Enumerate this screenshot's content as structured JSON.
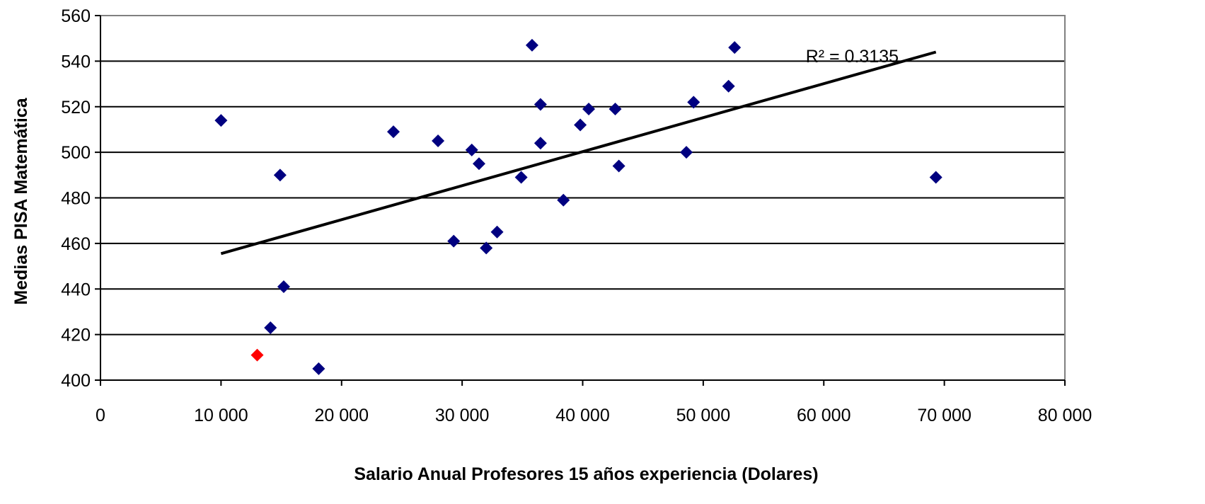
{
  "chart_data": {
    "type": "scatter",
    "title": "",
    "xlabel": "Salario Anual  Profesores 15 años experiencia (Dolares)",
    "ylabel": "Medias PISA Matemática",
    "xlim": [
      0,
      80000
    ],
    "ylim": [
      400,
      560
    ],
    "x_ticks": [
      0,
      10000,
      20000,
      30000,
      40000,
      50000,
      60000,
      70000,
      80000
    ],
    "x_tick_labels": [
      "0",
      "10 000",
      "20 000",
      "30 000",
      "40 000",
      "50 000",
      "60 000",
      "70 000",
      "80 000"
    ],
    "y_ticks": [
      400,
      420,
      440,
      460,
      480,
      500,
      520,
      540,
      560
    ],
    "y_tick_labels": [
      "400",
      "420",
      "440",
      "460",
      "480",
      "500",
      "520",
      "540",
      "560"
    ],
    "grid": "horizontal",
    "legend": "none",
    "series": [
      {
        "color": "#000080",
        "marker": "diamond",
        "points": [
          {
            "x": 10000,
            "y": 514
          },
          {
            "x": 14900,
            "y": 490
          },
          {
            "x": 15200,
            "y": 441
          },
          {
            "x": 14100,
            "y": 423
          },
          {
            "x": 18100,
            "y": 405
          },
          {
            "x": 24300,
            "y": 509
          },
          {
            "x": 28000,
            "y": 505
          },
          {
            "x": 29300,
            "y": 461
          },
          {
            "x": 30800,
            "y": 501
          },
          {
            "x": 31400,
            "y": 495
          },
          {
            "x": 32000,
            "y": 458
          },
          {
            "x": 32900,
            "y": 465
          },
          {
            "x": 34900,
            "y": 489
          },
          {
            "x": 35800,
            "y": 547
          },
          {
            "x": 36500,
            "y": 521
          },
          {
            "x": 36500,
            "y": 504
          },
          {
            "x": 38400,
            "y": 479
          },
          {
            "x": 39800,
            "y": 512
          },
          {
            "x": 40500,
            "y": 519
          },
          {
            "x": 42700,
            "y": 519
          },
          {
            "x": 43000,
            "y": 494
          },
          {
            "x": 48600,
            "y": 500
          },
          {
            "x": 49200,
            "y": 522
          },
          {
            "x": 52100,
            "y": 529
          },
          {
            "x": 52600,
            "y": 546
          },
          {
            "x": 69300,
            "y": 489
          }
        ]
      },
      {
        "color": "#ff0000",
        "marker": "diamond",
        "points": [
          {
            "x": 13000,
            "y": 411
          }
        ]
      }
    ],
    "trendline": {
      "type": "linear",
      "x": [
        10000,
        69300
      ],
      "y": [
        455.5,
        544
      ],
      "color": "#000000",
      "label": "R² = 0.3135"
    }
  }
}
